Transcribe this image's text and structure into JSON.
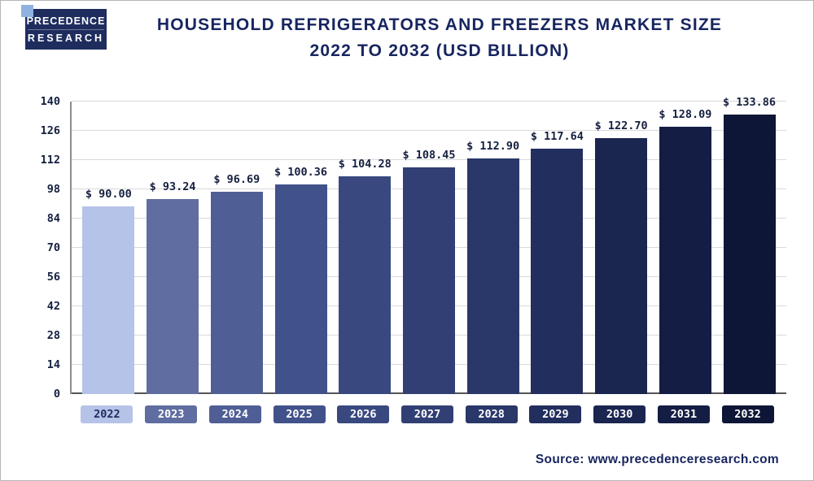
{
  "header": {
    "logo_line1": "PRECEDENCE",
    "logo_line2": "RESEARCH",
    "title_line1": "Household Refrigerators and Freezers Market Size",
    "title_line2": "2022 to 2032 (USD Billion)"
  },
  "footer": {
    "source_text": "Source: www.precedenceresearch.com"
  },
  "chart_data": {
    "type": "bar",
    "title": "Household Refrigerators and Freezers Market Size 2022 to 2032 (USD Billion)",
    "categories": [
      "2022",
      "2023",
      "2024",
      "2025",
      "2026",
      "2027",
      "2028",
      "2029",
      "2030",
      "2031",
      "2032"
    ],
    "values": [
      90.0,
      93.24,
      96.69,
      100.36,
      104.28,
      108.45,
      112.9,
      117.64,
      122.7,
      128.09,
      133.86
    ],
    "value_labels": [
      "$ 90.00",
      "$ 93.24",
      "$ 96.69",
      "$ 100.36",
      "$ 104.28",
      "$ 108.45",
      "$ 112.90",
      "$ 117.64",
      "$ 122.70",
      "$ 128.09",
      "$ 133.86"
    ],
    "bar_colors": [
      "#b6c3e8",
      "#5f6da0",
      "#4f5e95",
      "#41518a",
      "#394980",
      "#313f74",
      "#293769",
      "#222e5d",
      "#1a2550",
      "#141d44",
      "#0e1637"
    ],
    "chip_text_colors": [
      "#1e2d5e",
      "#ffffff",
      "#ffffff",
      "#ffffff",
      "#ffffff",
      "#ffffff",
      "#ffffff",
      "#ffffff",
      "#ffffff",
      "#ffffff",
      "#ffffff"
    ],
    "yticks": [
      0,
      14,
      28,
      42,
      56,
      70,
      84,
      98,
      112,
      126,
      140
    ],
    "ylim": [
      0,
      140
    ],
    "xlabel": "",
    "ylabel": "",
    "grid": "horizontal",
    "legend": "none"
  }
}
